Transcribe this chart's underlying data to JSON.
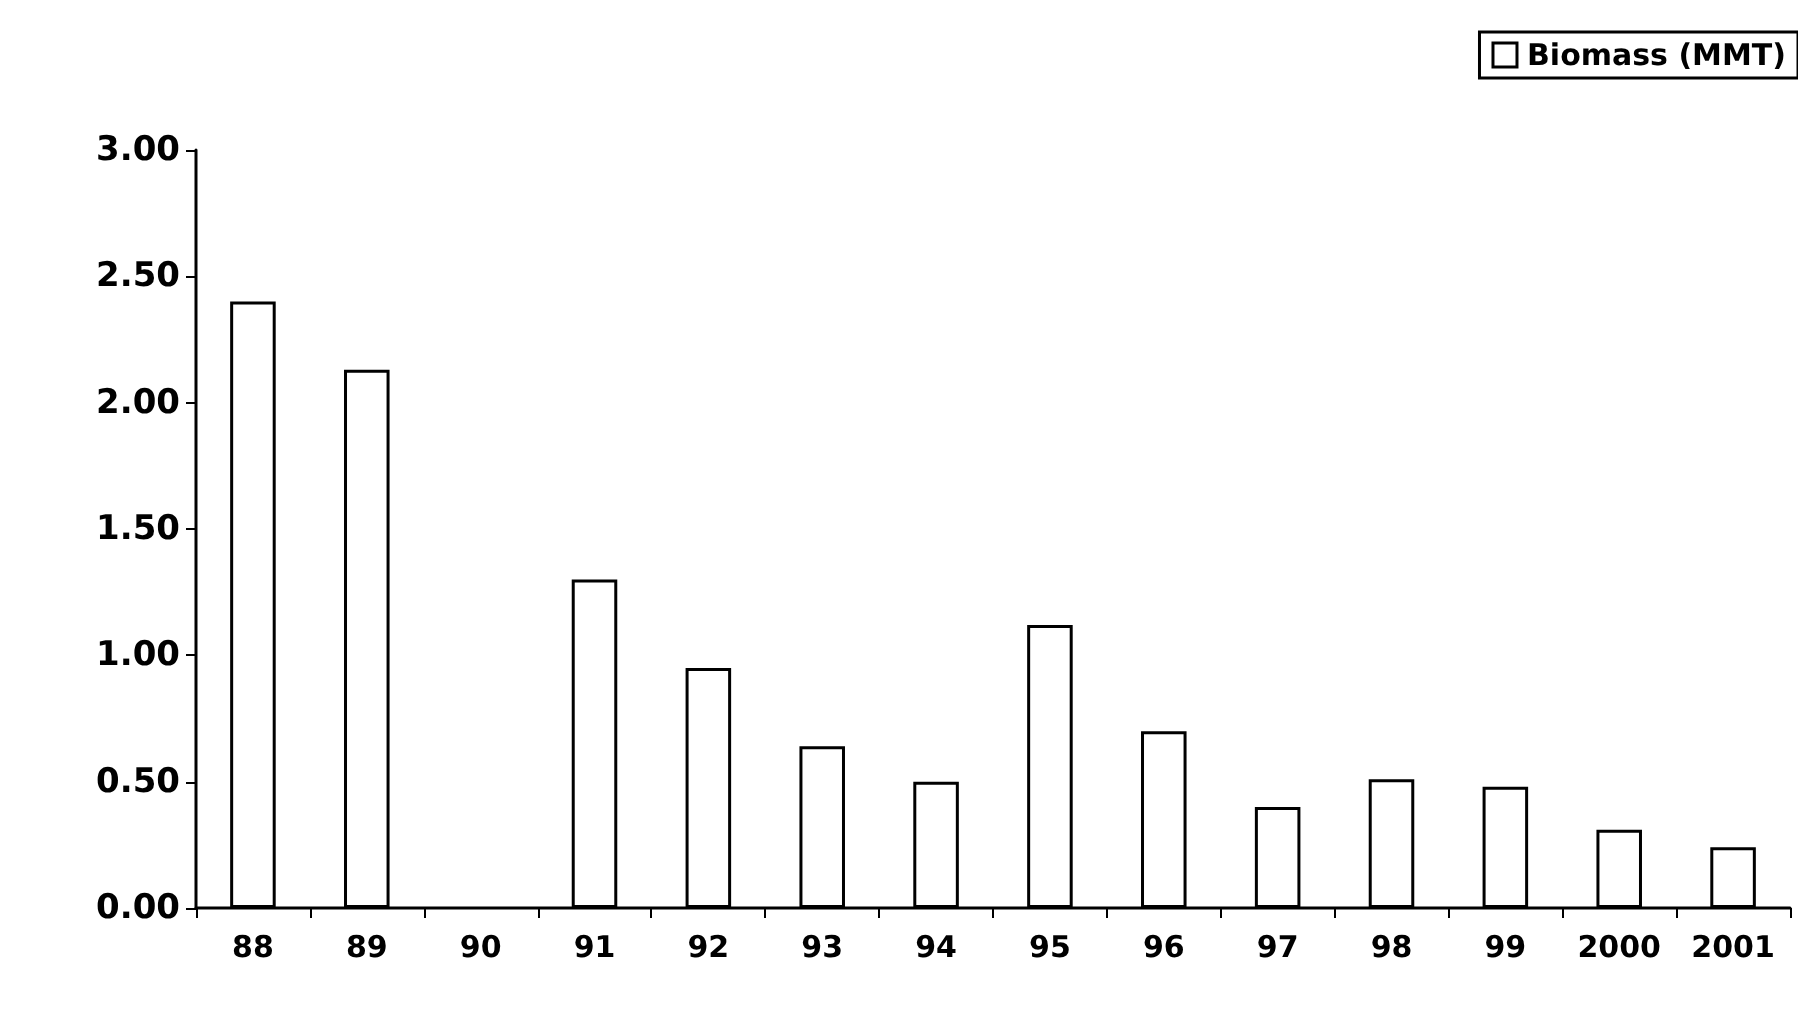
{
  "chart_data": {
    "type": "bar",
    "categories": [
      "88",
      "89",
      "90",
      "91",
      "92",
      "93",
      "94",
      "95",
      "96",
      "97",
      "98",
      "99",
      "2000",
      "2001"
    ],
    "series": [
      {
        "name": "Biomass (MMT)",
        "color": "#ffffff",
        "values": [
          2.4,
          2.13,
          null,
          1.3,
          0.95,
          0.64,
          0.5,
          1.12,
          0.7,
          0.4,
          0.51,
          0.48,
          0.31,
          0.24
        ]
      }
    ],
    "ylim": [
      0,
      3
    ],
    "yticks": [
      {
        "value": 0,
        "label": "0.00"
      },
      {
        "value": 0.5,
        "label": "0.50"
      },
      {
        "value": 1,
        "label": "1.00"
      },
      {
        "value": 1.5,
        "label": "1.50"
      },
      {
        "value": 2,
        "label": "2.00"
      },
      {
        "value": 2.5,
        "label": "2.50"
      },
      {
        "value": 3,
        "label": "3.00"
      }
    ],
    "grid": false,
    "legend": "top right"
  }
}
